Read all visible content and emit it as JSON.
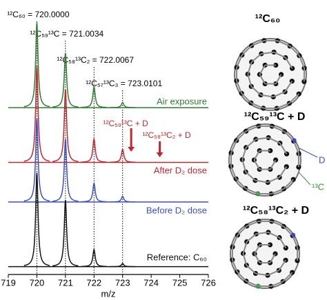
{
  "chart_data": {
    "type": "line",
    "x": [
      720,
      721,
      722,
      723
    ],
    "xlim": [
      719,
      726
    ],
    "xticks": [
      719,
      720,
      721,
      722,
      723,
      724,
      725,
      726
    ],
    "ylim": [
      0,
      100
    ],
    "xlabel": "m/z",
    "series": [
      {
        "name": "Air exposure",
        "color": "#2e7d32",
        "baseline": 64,
        "values": [
          96.6,
          85,
          72,
          66
        ]
      },
      {
        "name": "After D₂ dose",
        "color": "#c0282d",
        "baseline": 43,
        "values": [
          80,
          71,
          52,
          48
        ]
      },
      {
        "name": "Before D₂ dose",
        "color": "#3b4fc4",
        "baseline": 27.8,
        "values": [
          60,
          52,
          35,
          30
        ]
      },
      {
        "name": "Reference: C₆₀",
        "color": "#111111",
        "baseline": 3,
        "values": [
          39,
          28.6,
          9.5,
          4.2
        ]
      }
    ],
    "annotations": [
      {
        "text": "¹²C₆₀ = 720.0000",
        "x": 720
      },
      {
        "text": "¹²C₅₉¹³C = 721.0034",
        "x": 721
      },
      {
        "text": "¹²C₅₈¹³C₂ = 722.0067",
        "x": 722
      },
      {
        "text": "¹²C₅₇¹³C₃ = 723.0101",
        "x": 723
      }
    ],
    "arrows": [
      {
        "text": "¹²C₅₉¹³C + D",
        "x": 723.3
      },
      {
        "text": "¹²C₅₈¹³C₂ + D",
        "x": 724.3
      }
    ],
    "structures": [
      {
        "title": "¹²C₆₀"
      },
      {
        "title": "¹²C₅₉¹³C + D",
        "labels": [
          "D",
          "¹³C"
        ]
      },
      {
        "title": "¹²C₅₈¹³C₂ + D"
      }
    ]
  }
}
